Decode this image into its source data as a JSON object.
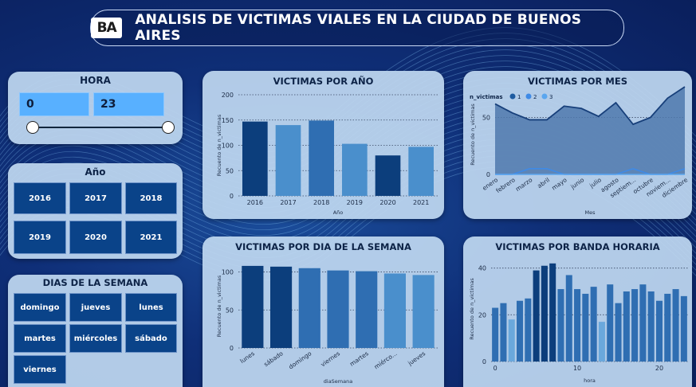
{
  "header": {
    "logo_text": "BA",
    "title": "ANALISIS DE VICTIMAS VIALES EN LA CIUDAD DE BUENOS AIRES"
  },
  "hora_filter": {
    "title": "HORA",
    "min_value": "0",
    "max_value": "23"
  },
  "anio_filter": {
    "title": "Año",
    "options": [
      "2016",
      "2017",
      "2018",
      "2019",
      "2020",
      "2021"
    ]
  },
  "dias_filter": {
    "title": "DIAS DE LA SEMANA",
    "options": [
      "domingo",
      "jueves",
      "lunes",
      "martes",
      "miércoles",
      "sábado",
      "viernes"
    ]
  },
  "colors": {
    "dark": "#0c3e7c",
    "mid": "#2f6eb2",
    "light": "#4a8fcc",
    "lighter": "#6aa8dc"
  },
  "chart_data": [
    {
      "id": "por-anio",
      "type": "bar",
      "title": "VICTIMAS POR AÑO",
      "xlabel": "Año",
      "ylabel": "Recuento de n_victimas",
      "ylim": [
        0,
        200
      ],
      "yticks": [
        0,
        50,
        100,
        150,
        200
      ],
      "categories": [
        "2016",
        "2017",
        "2018",
        "2019",
        "2020",
        "2021"
      ],
      "values": [
        147,
        140,
        149,
        103,
        80,
        97
      ],
      "grid": true
    },
    {
      "id": "por-mes",
      "type": "area",
      "title": "VICTIMAS POR MES",
      "xlabel": "Mes",
      "ylabel": "Recuento de n_victimas",
      "ylim": [
        0,
        70
      ],
      "yticks": [
        0,
        50
      ],
      "legend_title": "n_victimas",
      "legend_position": "top-left",
      "categories": [
        "enero",
        "febrero",
        "marzo",
        "abril",
        "mayo",
        "junio",
        "julio",
        "agosto",
        "septiem...",
        "octubre",
        "noviem...",
        "diciembre"
      ],
      "series": [
        {
          "name": "1",
          "values": [
            62,
            54,
            48,
            48,
            60,
            58,
            51,
            63,
            44,
            50,
            67,
            77
          ]
        },
        {
          "name": "2",
          "values": [
            0,
            0,
            5,
            5,
            0,
            0,
            0,
            0,
            5,
            0,
            0,
            5
          ]
        },
        {
          "name": "3",
          "values": [
            0,
            0,
            0,
            0,
            0,
            0,
            0,
            0,
            0,
            0,
            0,
            0
          ]
        }
      ],
      "grid": true
    },
    {
      "id": "por-dia",
      "type": "bar",
      "title": "VICTIMAS POR DIA DE LA SEMANA",
      "xlabel": "diaSemana",
      "ylabel": "Recuento de n_victimas",
      "ylim": [
        0,
        110
      ],
      "yticks": [
        0,
        50,
        100
      ],
      "categories": [
        "lunes",
        "sábado",
        "domingo",
        "viernes",
        "martes",
        "miérco...",
        "jueves"
      ],
      "values": [
        108,
        107,
        105,
        102,
        101,
        98,
        96
      ],
      "grid": true
    },
    {
      "id": "por-hora",
      "type": "bar",
      "title": "VICTIMAS POR BANDA HORARIA",
      "xlabel": "hora",
      "ylabel": "Recuento de n_victimas",
      "ylim": [
        0,
        45
      ],
      "yticks": [
        0,
        20,
        40
      ],
      "xticks": [
        0,
        10,
        20
      ],
      "categories": [
        "0",
        "1",
        "2",
        "3",
        "4",
        "5",
        "6",
        "7",
        "8",
        "9",
        "10",
        "11",
        "12",
        "13",
        "14",
        "15",
        "16",
        "17",
        "18",
        "19",
        "20",
        "21",
        "22",
        "23"
      ],
      "values": [
        23,
        25,
        18,
        26,
        27,
        39,
        41,
        42,
        31,
        37,
        31,
        29,
        32,
        17,
        33,
        25,
        30,
        31,
        33,
        30,
        26,
        29,
        31,
        28
      ],
      "grid": true
    }
  ]
}
